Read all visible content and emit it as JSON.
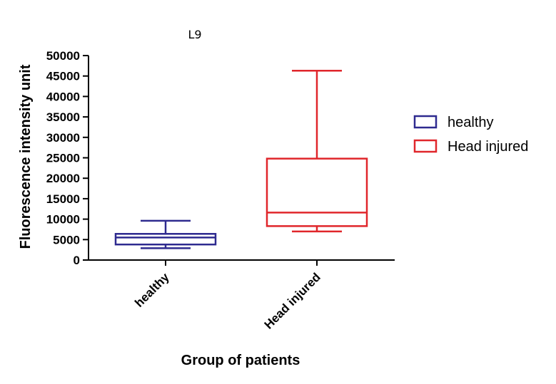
{
  "chart_data": {
    "type": "box",
    "title": "L9",
    "xlabel": "Group of patients",
    "ylabel": "Fluorescence intensity unit",
    "categories": [
      "healthy",
      "Head injured"
    ],
    "ylim": [
      0,
      50000
    ],
    "yticks": [
      "0",
      "5000",
      "10000",
      "15000",
      "20000",
      "25000",
      "30000",
      "35000",
      "40000",
      "45000",
      "50000"
    ],
    "series": [
      {
        "name": "healthy",
        "color": "#2e2a8f",
        "min": 2900,
        "q1": 3800,
        "median": 5500,
        "q3": 6400,
        "max": 9600
      },
      {
        "name": "Head injured",
        "color": "#e0262b",
        "min": 7000,
        "q1": 8300,
        "median": 11600,
        "q3": 24800,
        "max": 46300
      }
    ],
    "legend": {
      "position": "right"
    }
  }
}
